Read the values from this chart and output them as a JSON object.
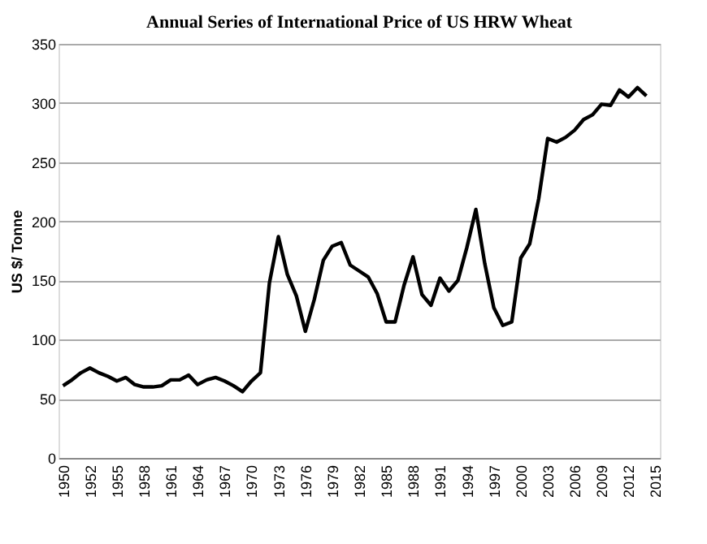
{
  "chart_data": {
    "type": "line",
    "title": "Annual Series of International Price of US HRW Wheat",
    "ylabel": "US $/ Tonne",
    "categories": [
      "1950",
      null,
      null,
      "1952",
      null,
      null,
      "1955",
      null,
      null,
      "1958",
      null,
      null,
      "1961",
      null,
      null,
      "1964",
      null,
      null,
      "1967",
      null,
      null,
      "1970",
      null,
      null,
      "1973",
      null,
      null,
      "1976",
      null,
      null,
      "1979",
      null,
      null,
      "1982",
      null,
      null,
      "1985",
      null,
      null,
      "1988",
      null,
      null,
      "1991",
      null,
      null,
      "1994",
      null,
      null,
      "1997",
      null,
      null,
      "2000",
      null,
      null,
      "2003",
      null,
      null,
      "2006",
      null,
      null,
      "2009",
      null,
      null,
      "2012",
      null,
      null,
      "2015"
    ],
    "series": [
      {
        "color": "#000000",
        "values": [
          61,
          66,
          72,
          76,
          72,
          69,
          65,
          68,
          62,
          60,
          60,
          61,
          66,
          66,
          70,
          62,
          66,
          68,
          65,
          61,
          56,
          65,
          72,
          148,
          187,
          155,
          137,
          107,
          134,
          167,
          179,
          182,
          163,
          158,
          153,
          139,
          115,
          115,
          146,
          170,
          138,
          129,
          152,
          141,
          150,
          178,
          210,
          164,
          127,
          112,
          115,
          169,
          181,
          219,
          270,
          267,
          271,
          277,
          286,
          290,
          299,
          298,
          311,
          305,
          313,
          306,
          null
        ]
      }
    ],
    "ylim": [
      0,
      350
    ],
    "yticks": [
      0,
      50,
      100,
      150,
      200,
      250,
      300,
      350
    ],
    "grid": "y",
    "marker": "none",
    "line_style": "solid"
  }
}
